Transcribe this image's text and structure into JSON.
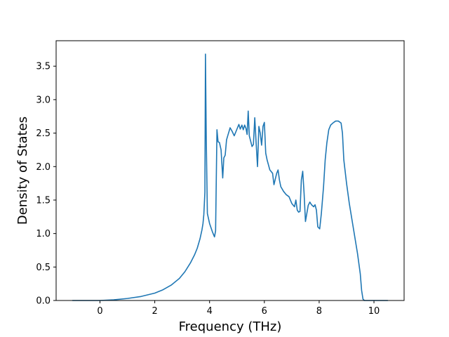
{
  "chart_data": {
    "type": "line",
    "title": "",
    "xlabel": "Frequency (THz)",
    "ylabel": "Density of States",
    "xlim": [
      -1.6,
      11.1
    ],
    "ylim": [
      0.0,
      3.88
    ],
    "xticks": [
      0,
      2,
      4,
      6,
      8,
      10
    ],
    "yticks": [
      0.0,
      0.5,
      1.0,
      1.5,
      2.0,
      2.5,
      3.0,
      3.5
    ],
    "xtick_labels": [
      "0",
      "2",
      "4",
      "6",
      "8",
      "10"
    ],
    "ytick_labels": [
      "0.0",
      "0.5",
      "1.0",
      "1.5",
      "2.0",
      "2.5",
      "3.0",
      "3.5"
    ],
    "grid": false,
    "legend": "none",
    "series": [
      {
        "color": "#1f77b4",
        "x": [
          -1.0,
          -0.5,
          0.0,
          0.5,
          1.0,
          1.5,
          2.0,
          2.3,
          2.6,
          2.9,
          3.1,
          3.3,
          3.45,
          3.55,
          3.65,
          3.72,
          3.76,
          3.79,
          3.81,
          3.83,
          3.85,
          3.88,
          3.92,
          4.0,
          4.1,
          4.18,
          4.22,
          4.27,
          4.31,
          4.36,
          4.42,
          4.48,
          4.52,
          4.57,
          4.62,
          4.67,
          4.75,
          4.82,
          4.9,
          5.0,
          5.07,
          5.12,
          5.18,
          5.23,
          5.28,
          5.33,
          5.37,
          5.41,
          5.45,
          5.5,
          5.55,
          5.6,
          5.65,
          5.7,
          5.75,
          5.8,
          5.85,
          5.9,
          5.95,
          6.0,
          6.05,
          6.1,
          6.2,
          6.3,
          6.35,
          6.45,
          6.5,
          6.55,
          6.6,
          6.7,
          6.8,
          6.9,
          7.0,
          7.1,
          7.15,
          7.2,
          7.25,
          7.3,
          7.35,
          7.4,
          7.45,
          7.5,
          7.6,
          7.66,
          7.72,
          7.8,
          7.85,
          7.9,
          7.95,
          8.02,
          8.08,
          8.12,
          8.16,
          8.22,
          8.28,
          8.35,
          8.42,
          8.5,
          8.6,
          8.7,
          8.8,
          8.85,
          8.9,
          9.0,
          9.1,
          9.2,
          9.3,
          9.4,
          9.5,
          9.55,
          9.6,
          9.65,
          10.0,
          10.5
        ],
        "y": [
          0.0,
          0.0,
          0.0,
          0.01,
          0.03,
          0.06,
          0.11,
          0.16,
          0.23,
          0.33,
          0.43,
          0.56,
          0.68,
          0.78,
          0.92,
          1.05,
          1.15,
          1.28,
          1.45,
          1.62,
          3.68,
          2.4,
          1.3,
          1.15,
          1.03,
          0.95,
          1.04,
          2.55,
          2.37,
          2.36,
          2.25,
          1.83,
          2.13,
          2.17,
          2.4,
          2.47,
          2.58,
          2.53,
          2.46,
          2.56,
          2.63,
          2.56,
          2.62,
          2.55,
          2.62,
          2.57,
          2.48,
          2.83,
          2.46,
          2.38,
          2.3,
          2.33,
          2.73,
          2.35,
          2.0,
          2.6,
          2.5,
          2.32,
          2.6,
          2.66,
          2.2,
          2.1,
          1.95,
          1.9,
          1.73,
          1.9,
          1.95,
          1.8,
          1.7,
          1.63,
          1.58,
          1.55,
          1.45,
          1.4,
          1.5,
          1.35,
          1.32,
          1.33,
          1.8,
          1.93,
          1.6,
          1.18,
          1.42,
          1.47,
          1.43,
          1.4,
          1.43,
          1.35,
          1.1,
          1.07,
          1.3,
          1.5,
          1.7,
          2.1,
          2.35,
          2.55,
          2.62,
          2.65,
          2.68,
          2.68,
          2.65,
          2.5,
          2.1,
          1.75,
          1.45,
          1.2,
          0.95,
          0.7,
          0.4,
          0.15,
          0.02,
          0.0,
          0.0,
          0.0
        ]
      }
    ]
  }
}
